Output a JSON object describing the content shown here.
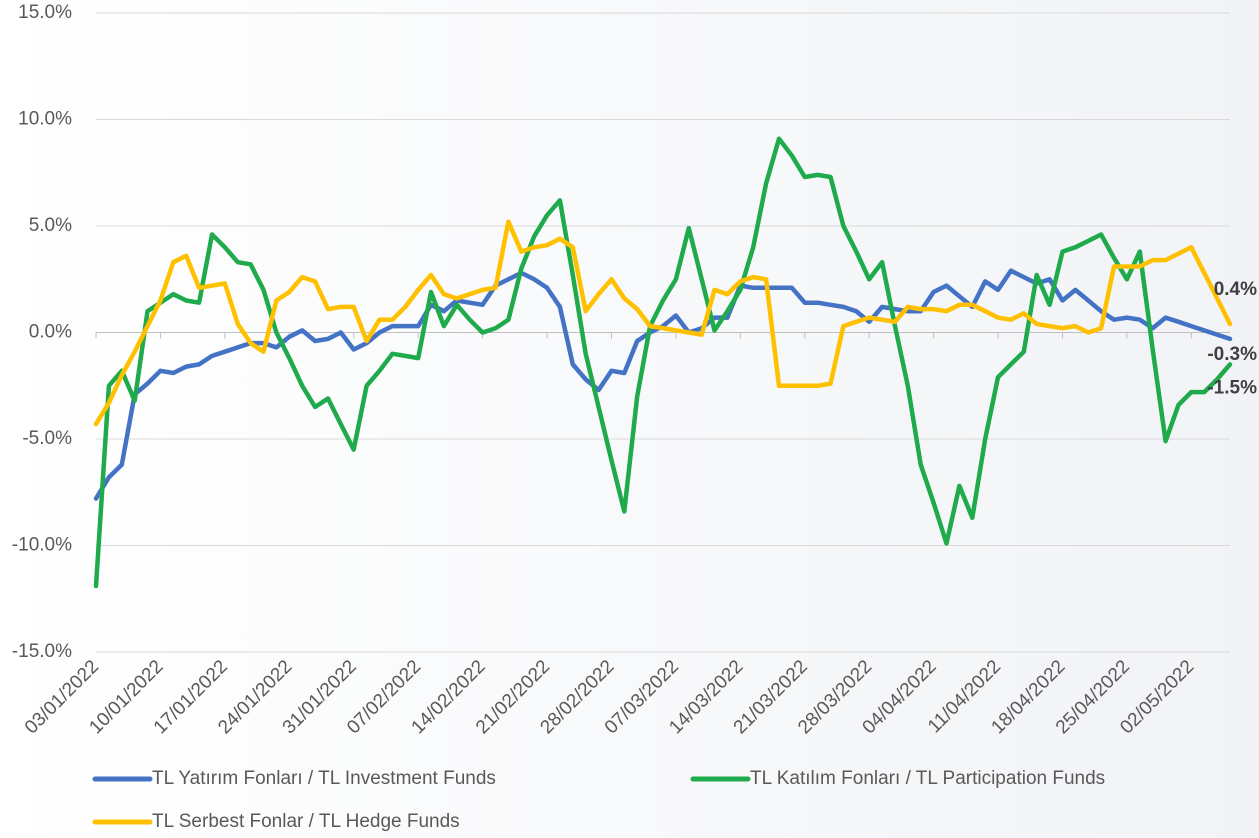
{
  "chart_data": {
    "type": "line",
    "categories": [
      "03/01/2022",
      null,
      null,
      null,
      null,
      "10/01/2022",
      null,
      null,
      null,
      null,
      "17/01/2022",
      null,
      null,
      null,
      null,
      "24/01/2022",
      null,
      null,
      null,
      null,
      "31/01/2022",
      null,
      null,
      null,
      null,
      "07/02/2022",
      null,
      null,
      null,
      null,
      "14/02/2022",
      null,
      null,
      null,
      null,
      "21/02/2022",
      null,
      null,
      null,
      null,
      "28/02/2022",
      null,
      null,
      null,
      null,
      "07/03/2022",
      null,
      null,
      null,
      null,
      "14/03/2022",
      null,
      null,
      null,
      null,
      "21/03/2022",
      null,
      null,
      null,
      null,
      "28/03/2022",
      null,
      null,
      null,
      null,
      "04/04/2022",
      null,
      null,
      null,
      null,
      "11/04/2022",
      null,
      null,
      null,
      null,
      "18/04/2022",
      null,
      null,
      null,
      null,
      "25/04/2022",
      null,
      null,
      null,
      null,
      "02/05/2022",
      null,
      null,
      null
    ],
    "series": [
      {
        "name": "TL Yatırım Fonları / TL Investment Funds",
        "color": "#4472c4",
        "values": [
          -7.8,
          -6.8,
          -6.2,
          -2.9,
          -2.4,
          -1.8,
          -1.9,
          -1.6,
          -1.5,
          -1.1,
          -0.9,
          -0.7,
          -0.5,
          -0.5,
          -0.7,
          -0.2,
          0.1,
          -0.4,
          -0.3,
          0.0,
          -0.8,
          -0.5,
          0.0,
          0.3,
          0.3,
          0.3,
          1.3,
          1.0,
          1.5,
          1.4,
          1.3,
          2.2,
          2.5,
          2.8,
          2.5,
          2.1,
          1.2,
          -1.5,
          -2.2,
          -2.7,
          -1.8,
          -1.9,
          -0.4,
          0.0,
          0.3,
          0.8,
          0.0,
          0.2,
          0.7,
          0.7,
          2.2,
          2.1,
          2.1,
          2.1,
          2.1,
          1.4,
          1.4,
          1.3,
          1.2,
          1.0,
          0.5,
          1.2,
          1.1,
          1.0,
          1.0,
          1.9,
          2.2,
          1.7,
          1.2,
          2.4,
          2.0,
          2.9,
          2.6,
          2.3,
          2.5,
          1.5,
          2.0,
          1.5,
          1.0,
          0.6,
          0.7,
          0.6,
          0.2,
          0.7,
          0.5,
          0.3,
          0.1,
          -0.1,
          -0.3
        ],
        "value_labels": [
          null,
          null,
          null,
          null,
          null,
          null,
          null,
          null,
          null,
          null,
          null,
          null,
          null,
          null,
          null,
          null,
          null,
          null,
          null,
          null,
          null,
          null,
          null,
          null,
          null,
          null,
          null,
          null,
          null,
          null,
          null,
          null,
          null,
          null,
          null,
          null,
          null,
          null,
          null,
          null,
          null,
          null,
          null,
          null,
          null,
          null,
          null,
          null,
          null,
          null,
          null,
          null,
          null,
          null,
          null,
          null,
          null,
          null,
          null,
          null,
          null,
          null,
          null,
          null,
          null,
          null,
          null,
          null,
          null,
          null,
          null,
          null,
          null,
          null,
          null,
          null,
          null,
          null,
          null,
          null,
          null,
          null,
          null,
          null,
          null,
          null,
          null,
          null,
          "-0.3%"
        ]
      },
      {
        "name": "TL Katılım Fonları / TL Participation Funds",
        "color": "#1faa4b",
        "values": [
          -11.9,
          -2.5,
          -1.8,
          -3.2,
          1.0,
          1.4,
          1.8,
          1.5,
          1.4,
          4.6,
          4.0,
          3.3,
          3.2,
          2.0,
          0.0,
          -1.2,
          -2.5,
          -3.5,
          -3.1,
          -4.3,
          -5.5,
          -2.5,
          -1.8,
          -1.0,
          -1.1,
          -1.2,
          1.9,
          0.3,
          1.3,
          0.6,
          0.0,
          0.2,
          0.6,
          3.0,
          4.5,
          5.5,
          6.2,
          2.7,
          -1.0,
          -3.5,
          -6.0,
          -8.4,
          -3.0,
          0.3,
          1.5,
          2.5,
          4.9,
          2.5,
          0.1,
          1.0,
          2.0,
          4.0,
          7.0,
          9.1,
          8.3,
          7.3,
          7.4,
          7.3,
          5.0,
          3.8,
          2.5,
          3.3,
          0.3,
          -2.5,
          -6.2,
          -8.0,
          -9.9,
          -7.2,
          -8.7,
          -5.0,
          -2.1,
          -1.5,
          -0.9,
          2.7,
          1.3,
          3.8,
          4.0,
          4.3,
          4.6,
          3.5,
          2.5,
          3.8,
          -0.8,
          -5.1,
          -3.4,
          -2.8,
          -2.8,
          -2.2,
          -1.5
        ],
        "value_labels": [
          null,
          null,
          null,
          null,
          null,
          null,
          null,
          null,
          null,
          null,
          null,
          null,
          null,
          null,
          null,
          null,
          null,
          null,
          null,
          null,
          null,
          null,
          null,
          null,
          null,
          null,
          null,
          null,
          null,
          null,
          null,
          null,
          null,
          null,
          null,
          null,
          null,
          null,
          null,
          null,
          null,
          null,
          null,
          null,
          null,
          null,
          null,
          null,
          null,
          null,
          null,
          null,
          null,
          null,
          null,
          null,
          null,
          null,
          null,
          null,
          null,
          null,
          null,
          null,
          null,
          null,
          null,
          null,
          null,
          null,
          null,
          null,
          null,
          null,
          null,
          null,
          null,
          null,
          null,
          null,
          null,
          null,
          null,
          null,
          null,
          null,
          null,
          null,
          "-1.5%"
        ]
      },
      {
        "name": "TL Serbest Fonlar / TL Hedge Funds",
        "color": "#ffc000",
        "values": [
          -4.3,
          -3.3,
          -2.0,
          -0.9,
          0.3,
          1.5,
          3.3,
          3.6,
          2.1,
          2.2,
          2.3,
          0.4,
          -0.5,
          -0.9,
          1.5,
          1.9,
          2.6,
          2.4,
          1.1,
          1.2,
          1.2,
          -0.4,
          0.6,
          0.6,
          1.2,
          2.0,
          2.7,
          1.8,
          1.6,
          1.8,
          2.0,
          2.1,
          5.2,
          3.8,
          4.0,
          4.1,
          4.4,
          4.0,
          1.0,
          1.8,
          2.5,
          1.6,
          1.1,
          0.3,
          0.2,
          0.1,
          0.0,
          -0.1,
          2.0,
          1.8,
          2.4,
          2.6,
          2.5,
          -2.5,
          -2.5,
          -2.5,
          -2.5,
          -2.4,
          0.3,
          0.5,
          0.7,
          0.6,
          0.5,
          1.2,
          1.1,
          1.1,
          1.0,
          1.3,
          1.3,
          1.0,
          0.7,
          0.6,
          0.9,
          0.4,
          0.3,
          0.2,
          0.3,
          0.0,
          0.2,
          3.1,
          3.1,
          3.1,
          3.4,
          3.4,
          3.7,
          4.0,
          2.8,
          1.6,
          0.4
        ],
        "value_labels": [
          null,
          null,
          null,
          null,
          null,
          null,
          null,
          null,
          null,
          null,
          null,
          null,
          null,
          null,
          null,
          null,
          null,
          null,
          null,
          null,
          null,
          null,
          null,
          null,
          null,
          null,
          null,
          null,
          null,
          null,
          null,
          null,
          null,
          null,
          null,
          null,
          null,
          null,
          null,
          null,
          null,
          null,
          null,
          null,
          null,
          null,
          null,
          null,
          null,
          null,
          null,
          null,
          null,
          null,
          null,
          null,
          null,
          null,
          null,
          null,
          null,
          null,
          null,
          null,
          null,
          null,
          null,
          null,
          null,
          null,
          null,
          null,
          null,
          null,
          null,
          null,
          null,
          null,
          null,
          null,
          null,
          null,
          null,
          null,
          null,
          null,
          null,
          null,
          "0.4%"
        ]
      }
    ],
    "ylim": [
      -15,
      15
    ],
    "yticks": [
      {
        "value": -15,
        "label": "-15.0%"
      },
      {
        "value": -10,
        "label": "-10.0%"
      },
      {
        "value": -5,
        "label": "-5.0%"
      },
      {
        "value": 0,
        "label": "0.0%"
      },
      {
        "value": 5,
        "label": "5.0%"
      },
      {
        "value": 10,
        "label": "10.0%"
      },
      {
        "value": 15,
        "label": "15.0%"
      }
    ],
    "grid": true,
    "legend": "bottom"
  }
}
